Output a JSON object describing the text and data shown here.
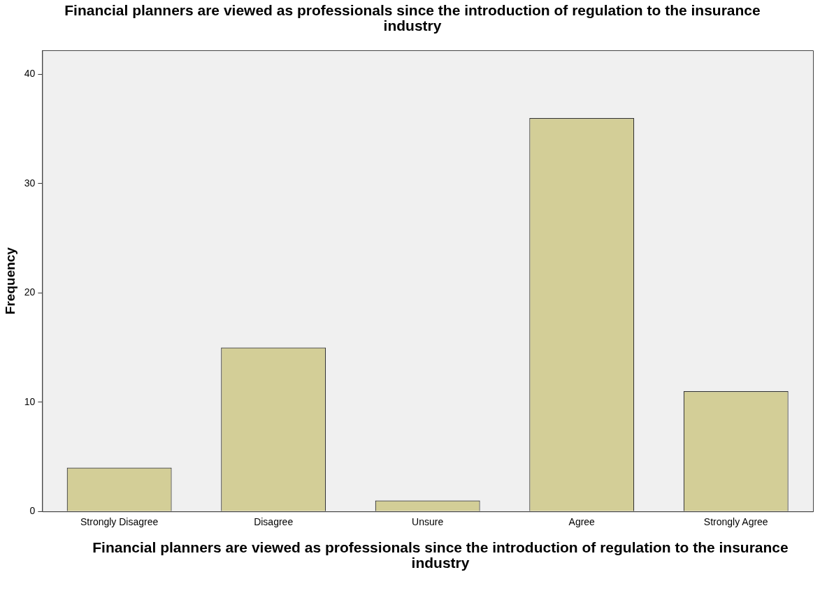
{
  "chart_data": {
    "type": "bar",
    "title": "Financial planners are viewed as professionals since the introduction of regulation to the insurance industry",
    "xlabel": "Financial planners are viewed as professionals since the introduction of regulation to the insurance industry",
    "ylabel": "Frequency",
    "categories": [
      "Strongly Disagree",
      "Disagree",
      "Unsure",
      "Agree",
      "Strongly Agree"
    ],
    "values": [
      4,
      15,
      1,
      36,
      11
    ],
    "color": "#d3ce97",
    "ylim": [
      0,
      42.2
    ],
    "yticks": [
      0,
      10,
      20,
      30,
      40
    ],
    "grid": false,
    "legend": false
  }
}
